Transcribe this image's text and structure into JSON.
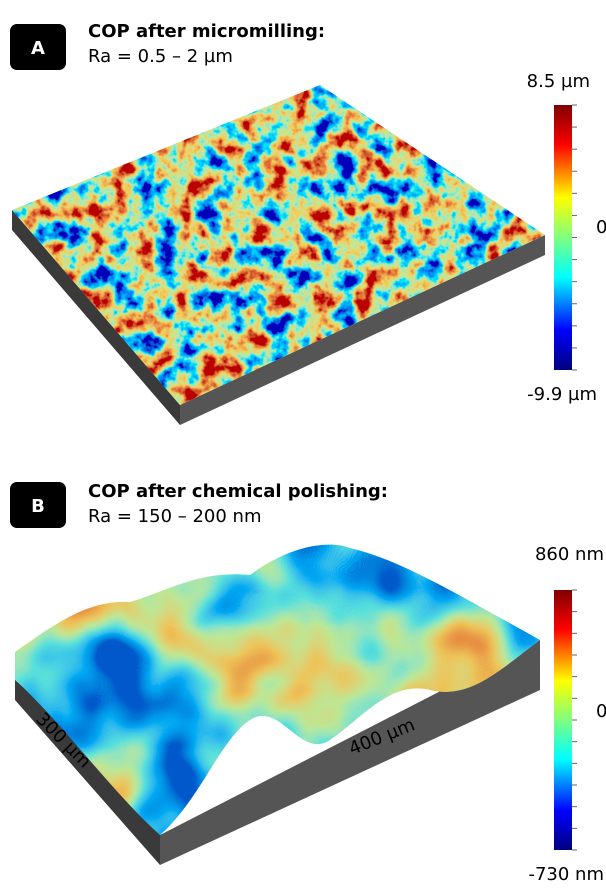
{
  "panels": [
    {
      "label": "A",
      "title": "COP after micromilling:",
      "subtitle": "Ra = 0.5 – 2 µm",
      "colorbar": {
        "max": "8.5 µm",
        "mid": "0",
        "min": "-9.9 µm"
      }
    },
    {
      "label": "B",
      "title": "COP after chemical polishing:",
      "subtitle": "Ra = 150 – 200 nm",
      "colorbar": {
        "max": "860 nm",
        "mid": "0",
        "min": "-730 nm"
      },
      "axis_labels": [
        "300 µm",
        "400 µm"
      ]
    }
  ]
}
